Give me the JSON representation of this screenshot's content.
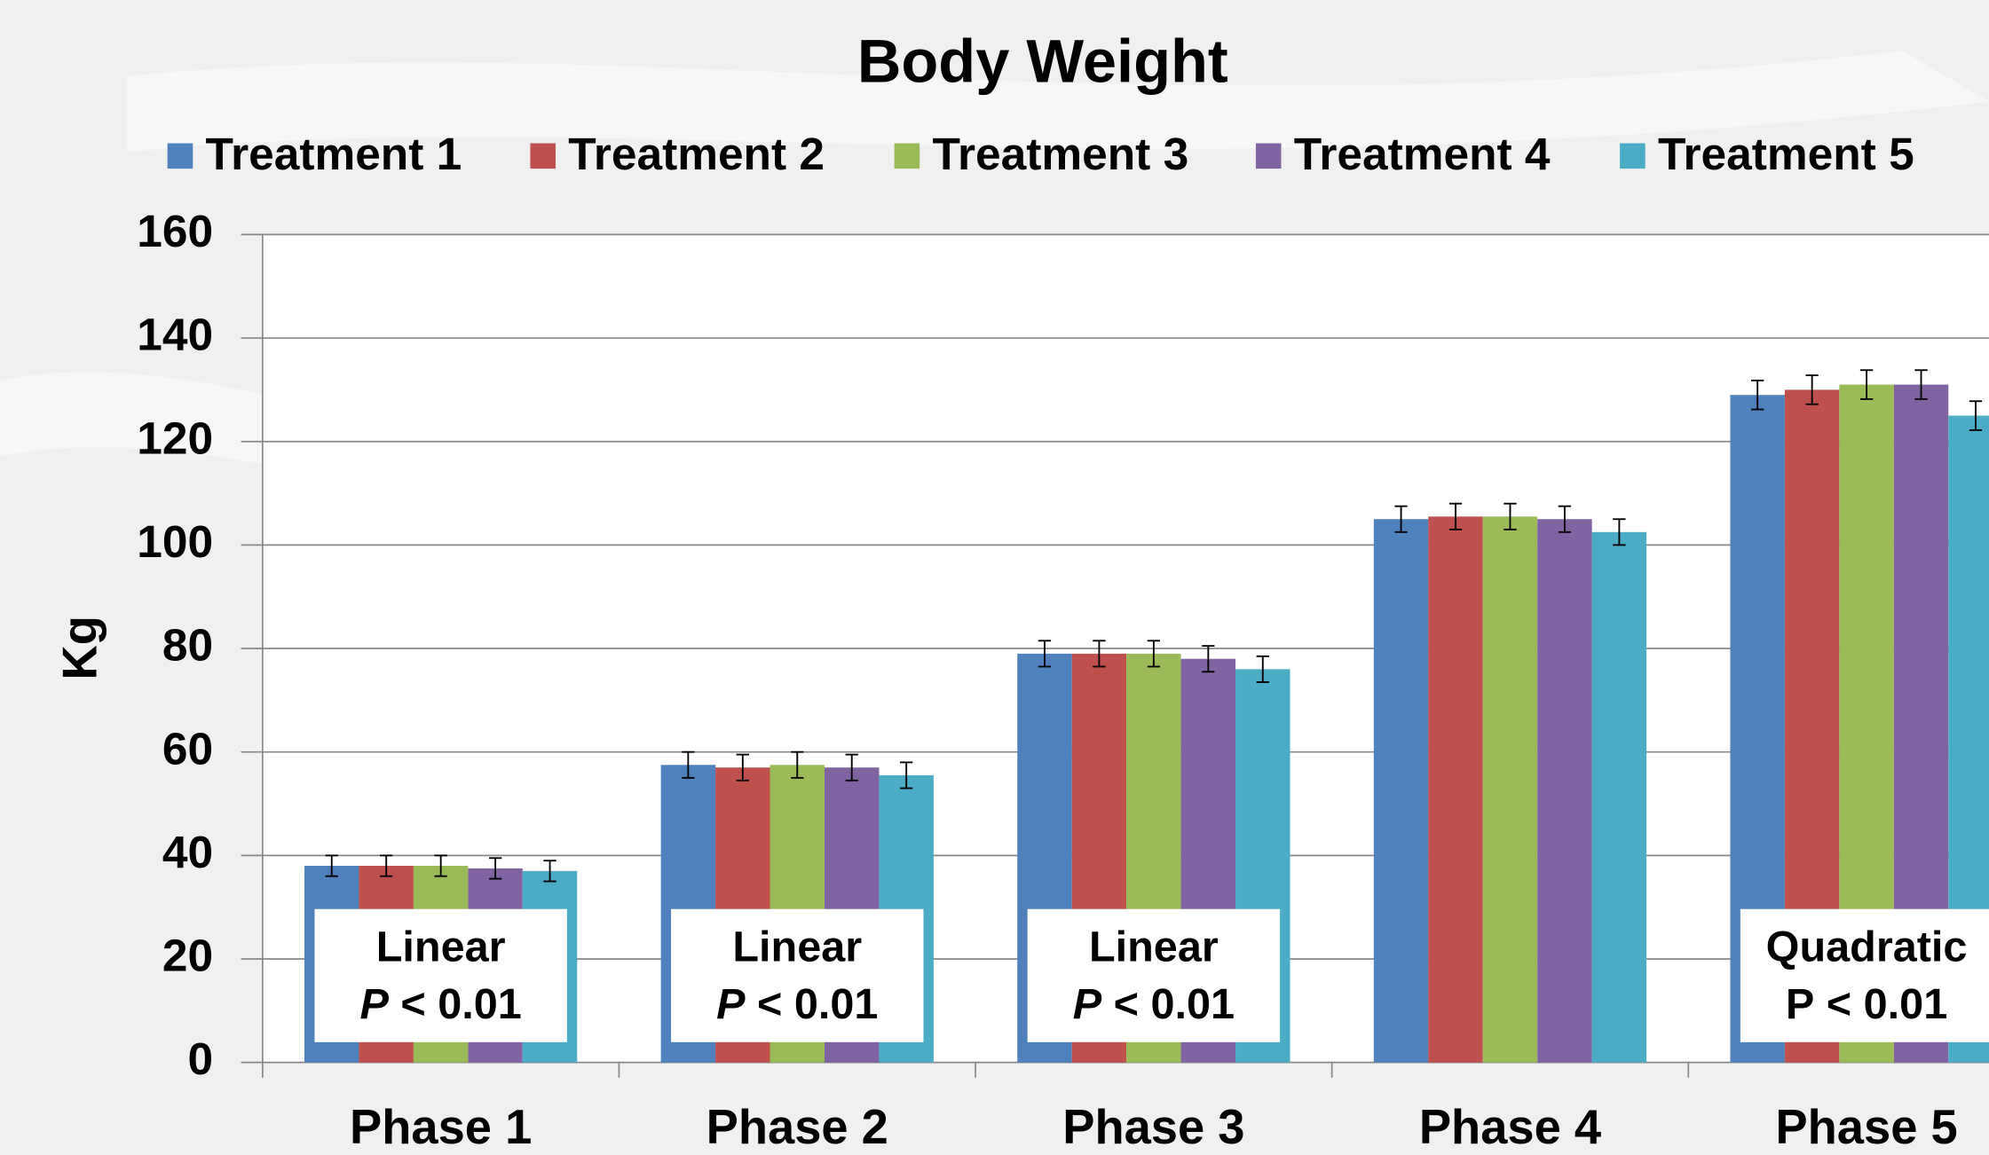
{
  "chart_data": {
    "type": "bar",
    "title": "Body Weight",
    "y_label": "Kg",
    "categories": [
      "Phase 1",
      "Phase 2",
      "Phase 3",
      "Phase 4",
      "Phase 5"
    ],
    "series": [
      {
        "name": "Treatment 1",
        "color": "#4f81bd",
        "values": [
          38,
          57.5,
          79,
          105,
          129
        ],
        "errors": [
          2,
          2.5,
          2.5,
          2.5,
          2.8
        ]
      },
      {
        "name": "Treatment 2",
        "color": "#c0504d",
        "values": [
          38,
          57,
          79,
          105.5,
          130
        ],
        "errors": [
          2,
          2.5,
          2.5,
          2.5,
          2.8
        ]
      },
      {
        "name": "Treatment 3",
        "color": "#9bbb59",
        "values": [
          38,
          57.5,
          79,
          105.5,
          131
        ],
        "errors": [
          2,
          2.5,
          2.5,
          2.5,
          2.8
        ]
      },
      {
        "name": "Treatment 4",
        "color": "#8064a2",
        "values": [
          37.5,
          57,
          78,
          105,
          131
        ],
        "errors": [
          2,
          2.5,
          2.5,
          2.5,
          2.8
        ]
      },
      {
        "name": "Treatment 5",
        "color": "#4bacc6",
        "values": [
          37,
          55.5,
          76,
          102.5,
          125
        ],
        "errors": [
          2,
          2.5,
          2.5,
          2.5,
          2.8
        ]
      }
    ],
    "annotations": [
      {
        "test": "Linear",
        "p_symbol": "P",
        "p_value": "< 0.01",
        "italic": true
      },
      {
        "test": "Linear",
        "p_symbol": "P",
        "p_value": "< 0.01",
        "italic": true
      },
      {
        "test": "Linear",
        "p_symbol": "P",
        "p_value": "< 0.01",
        "italic": true
      },
      null,
      {
        "test": "Quadratic",
        "p_symbol": "P",
        "p_value": "< 0.01",
        "italic": false
      }
    ],
    "ylim": [
      0,
      160
    ],
    "yticks": [
      0,
      20,
      40,
      60,
      80,
      100,
      120,
      140,
      160
    ],
    "grid": true,
    "legend": "top"
  }
}
